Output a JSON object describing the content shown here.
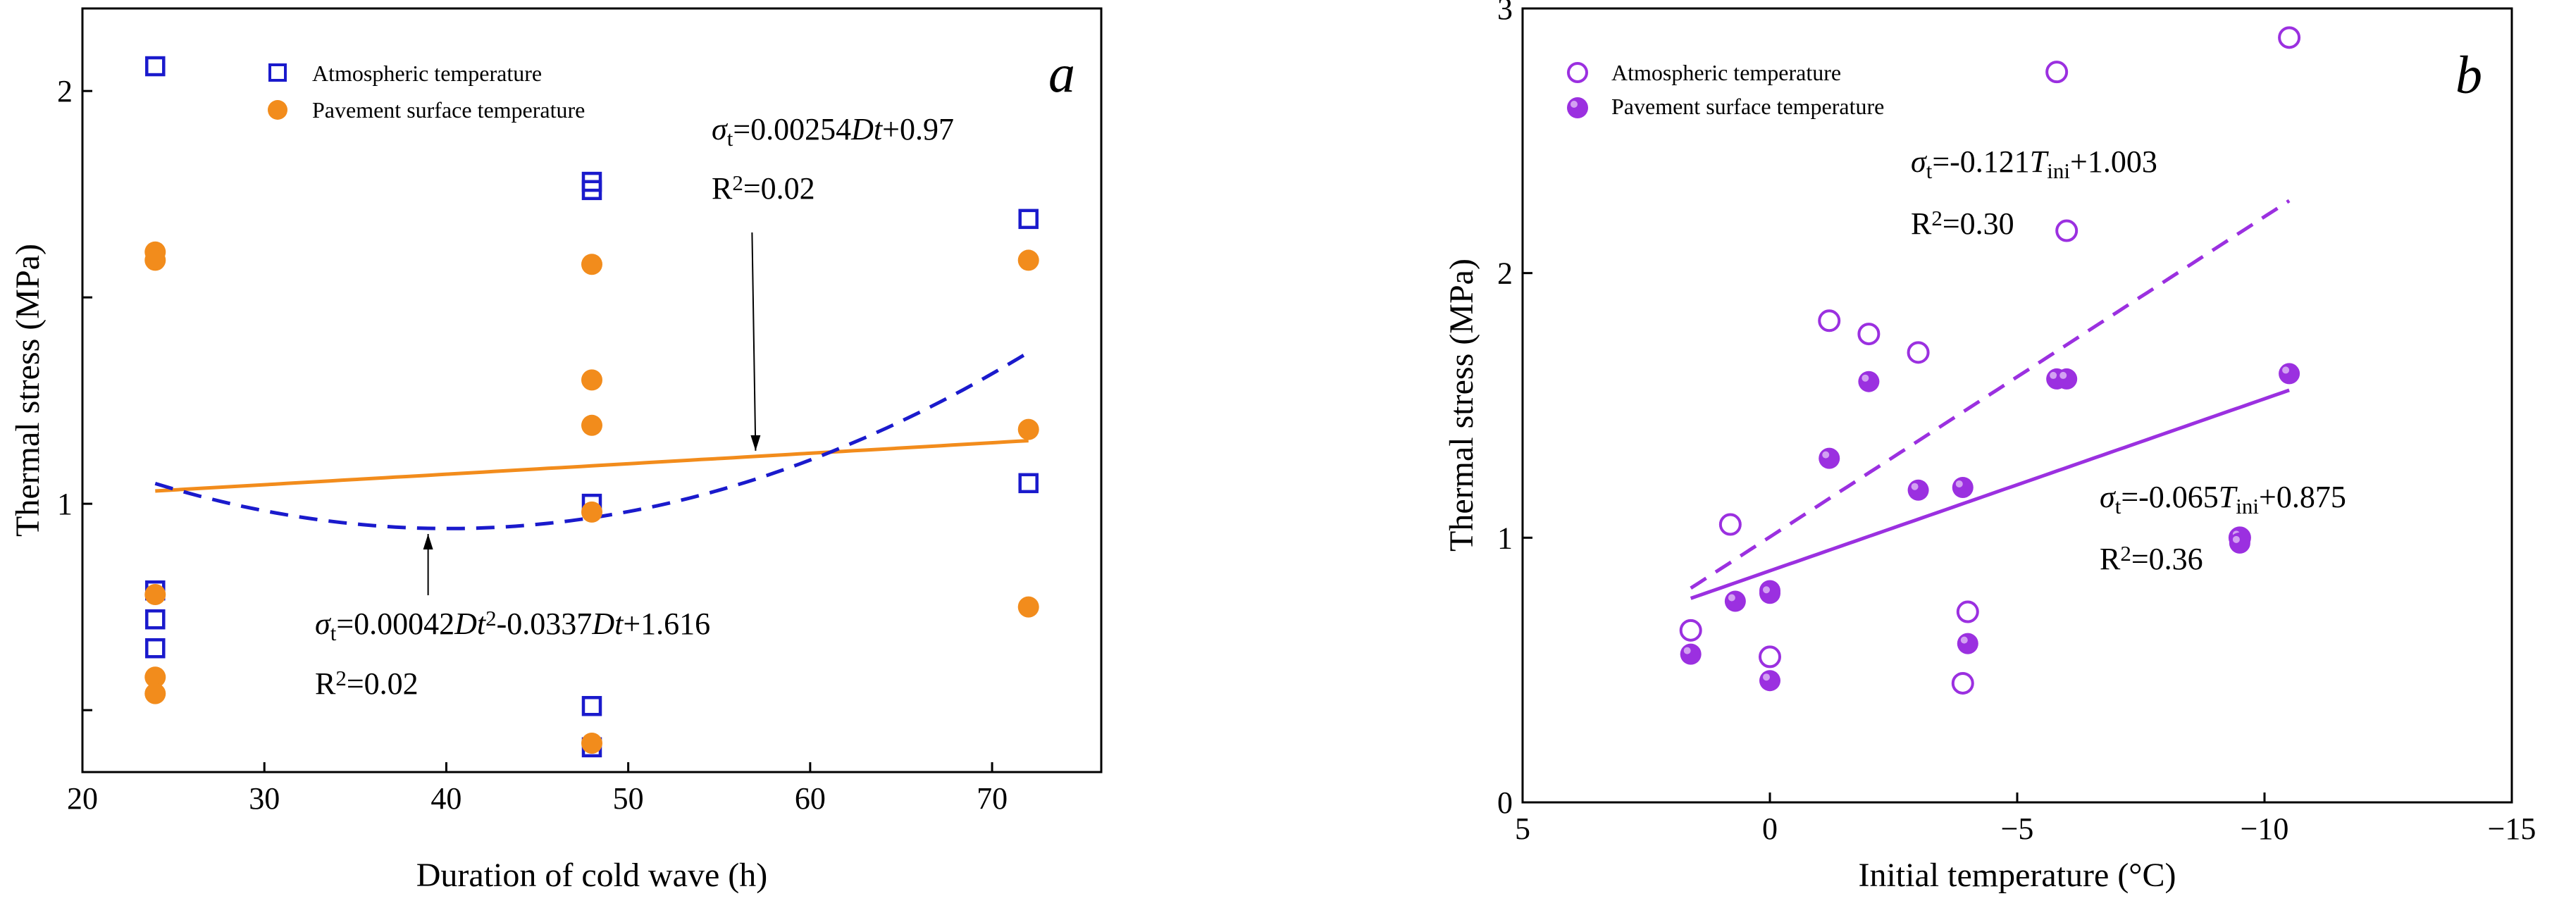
{
  "chart_data": [
    {
      "type": "scatter",
      "panel_label": "a",
      "xlabel": "Duration of cold wave (h)",
      "ylabel": "Thermal stress (MPa)",
      "xlim": [
        20,
        76
      ],
      "ylim": [
        0.35,
        2.2
      ],
      "xticks": [
        20,
        30,
        40,
        50,
        60,
        70
      ],
      "xtick_labels": [
        "20",
        "30",
        "40",
        "50",
        "60",
        "70"
      ],
      "yticks": [
        0.5,
        1,
        1.5,
        2
      ],
      "ytick_labels": [
        "",
        "1",
        "",
        "2"
      ],
      "legend_position": "top-center",
      "series": [
        {
          "name": "Atmospheric temperature",
          "marker": "open-square",
          "color": "#1a1acc",
          "points": [
            [
              24,
              2.06
            ],
            [
              24,
              0.79
            ],
            [
              24,
              0.72
            ],
            [
              24,
              0.65
            ],
            [
              48,
              1.78
            ],
            [
              48,
              1.76
            ],
            [
              48,
              1.0
            ],
            [
              48,
              0.51
            ],
            [
              48,
              0.41
            ],
            [
              72,
              1.69
            ],
            [
              72,
              1.05
            ]
          ]
        },
        {
          "name": "Pavement surface temperature",
          "marker": "filled-circle",
          "color": "#f28c1c",
          "points": [
            [
              24,
              1.61
            ],
            [
              24,
              1.59
            ],
            [
              24,
              0.78
            ],
            [
              24,
              0.58
            ],
            [
              24,
              0.54
            ],
            [
              48,
              1.58
            ],
            [
              48,
              1.3
            ],
            [
              48,
              1.19
            ],
            [
              48,
              0.98
            ],
            [
              48,
              0.42
            ],
            [
              72,
              1.59
            ],
            [
              72,
              1.18
            ],
            [
              72,
              0.75
            ]
          ]
        }
      ],
      "fits": [
        {
          "name": "linear fit",
          "style": "solid",
          "color": "#f28c1c",
          "x_range": [
            24,
            72
          ],
          "coefficients": [
            0.97,
            0.00254
          ],
          "equation_lines": [
            [
              {
                "t": "σ",
                "i": true
              },
              {
                "t": "t",
                "sub": true
              },
              {
                "t": "=0.00254"
              },
              {
                "t": "Dt",
                "i": true
              },
              {
                "t": "+0.97"
              }
            ],
            [
              {
                "t": "R"
              },
              {
                "t": "2",
                "sup": true
              },
              {
                "t": "=0.02"
              }
            ]
          ],
          "label_anchor": [
            57,
            1.12
          ]
        },
        {
          "name": "quadratic fit",
          "style": "dashed",
          "color": "#1a1acc",
          "x_range": [
            24,
            72
          ],
          "coefficients": [
            1.616,
            -0.0337,
            0.00042
          ],
          "equation_lines": [
            [
              {
                "t": "σ",
                "i": true
              },
              {
                "t": "t",
                "sub": true
              },
              {
                "t": "=0.00042"
              },
              {
                "t": "Dt",
                "i": true
              },
              {
                "t": "2",
                "sup": true
              },
              {
                "t": "-0.0337"
              },
              {
                "t": "Dt",
                "i": true
              },
              {
                "t": "+1.616"
              }
            ],
            [
              {
                "t": "R"
              },
              {
                "t": "2",
                "sup": true
              },
              {
                "t": "=0.02"
              }
            ]
          ],
          "label_anchor": [
            39,
            0.95
          ]
        }
      ]
    },
    {
      "type": "scatter",
      "panel_label": "b",
      "xlabel": "Initial temperature (°C)",
      "ylabel": "Thermal stress (MPa)",
      "xlim": [
        5,
        -15
      ],
      "ylim": [
        0,
        3
      ],
      "xticks": [
        5,
        0,
        -5,
        -10,
        -15
      ],
      "xtick_labels": [
        "5",
        "0",
        "−5",
        "−10",
        "−15"
      ],
      "yticks": [
        0,
        1,
        2,
        3
      ],
      "ytick_labels": [
        "0",
        "1",
        "2",
        "3"
      ],
      "legend_position": "top-left",
      "series": [
        {
          "name": "Atmospheric temperature",
          "marker": "open-circle",
          "color": "#9b30e0",
          "points": [
            [
              -10.5,
              2.89
            ],
            [
              -5.8,
              2.76
            ],
            [
              -6.0,
              2.16
            ],
            [
              -1.2,
              1.82
            ],
            [
              -2.0,
              1.77
            ],
            [
              -3.0,
              1.7
            ],
            [
              0.8,
              1.05
            ],
            [
              0.0,
              0.55
            ],
            [
              1.6,
              0.65
            ],
            [
              -4.0,
              0.72
            ],
            [
              -3.9,
              0.45
            ],
            [
              -9.5,
              1.0
            ]
          ]
        },
        {
          "name": "Pavement surface temperature",
          "marker": "filled-circle",
          "color": "#9b30e0",
          "points": [
            [
              -10.5,
              1.62
            ],
            [
              -5.8,
              1.6
            ],
            [
              -6.0,
              1.6
            ],
            [
              -2.0,
              1.59
            ],
            [
              -1.2,
              1.3
            ],
            [
              -3.0,
              1.18
            ],
            [
              -3.9,
              1.19
            ],
            [
              0.0,
              0.8
            ],
            [
              0.0,
              0.79
            ],
            [
              0.0,
              0.46
            ],
            [
              0.7,
              0.76
            ],
            [
              1.6,
              0.56
            ],
            [
              -4.0,
              0.6
            ],
            [
              -9.5,
              1.0
            ],
            [
              -9.5,
              0.98
            ]
          ]
        }
      ],
      "fits": [
        {
          "name": "atmospheric fit",
          "style": "dashed",
          "color": "#9b30e0",
          "x_range": [
            1.6,
            -10.5
          ],
          "coefficients": [
            1.003,
            -0.121
          ],
          "equation_lines": [
            [
              {
                "t": "σ",
                "i": true
              },
              {
                "t": "t",
                "sub": true
              },
              {
                "t": "=-0.121"
              },
              {
                "t": "T",
                "i": true
              },
              {
                "t": "ini",
                "sub": true
              },
              {
                "t": "+1.003"
              }
            ],
            [
              {
                "t": "R"
              },
              {
                "t": "2",
                "sup": true
              },
              {
                "t": "=0.30"
              }
            ]
          ],
          "label_anchor": [
            -5.5,
            2.3
          ]
        },
        {
          "name": "pavement fit",
          "style": "solid",
          "color": "#9b30e0",
          "x_range": [
            1.6,
            -10.5
          ],
          "coefficients": [
            0.875,
            -0.065
          ],
          "equation_lines": [
            [
              {
                "t": "σ",
                "i": true
              },
              {
                "t": "t",
                "sub": true
              },
              {
                "t": "=-0.065"
              },
              {
                "t": "T",
                "i": true
              },
              {
                "t": "ini",
                "sub": true
              },
              {
                "t": "+0.875"
              }
            ],
            [
              {
                "t": "R"
              },
              {
                "t": "2",
                "sup": true
              },
              {
                "t": "=0.36"
              }
            ]
          ],
          "label_anchor": [
            -8,
            1.0
          ]
        }
      ]
    }
  ]
}
